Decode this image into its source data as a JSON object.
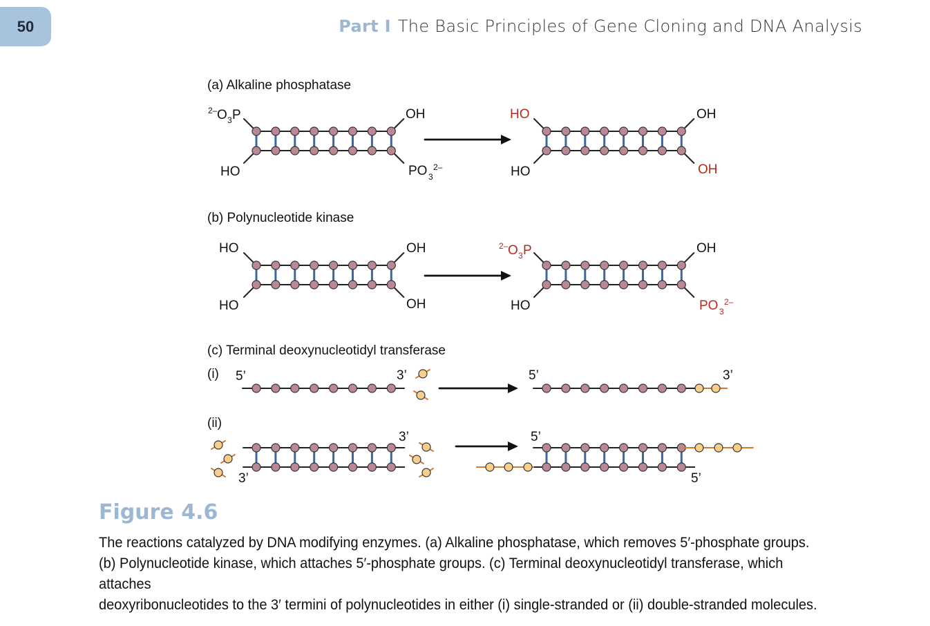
{
  "page": {
    "number": "50",
    "part": "Part I",
    "book_title": "The Basic Principles of Gene Cloning and DNA Analysis"
  },
  "figure": {
    "panel_a": {
      "title": "(a) Alkaline phosphatase",
      "left_top_left": "2–O3P",
      "left_top_right": "OH",
      "left_bottom_left": "HO",
      "left_bottom_right": "PO32–",
      "right_top_left": "HO",
      "right_top_right": "OH",
      "right_bottom_left": "HO",
      "right_bottom_right": "OH"
    },
    "panel_b": {
      "title": "(b) Polynucleotide kinase",
      "left_top_left": "HO",
      "left_top_right": "OH",
      "left_bottom_left": "HO",
      "left_bottom_right": "OH",
      "right_top_left": "2–O3P",
      "right_top_right": "OH",
      "right_bottom_left": "HO",
      "right_bottom_right": "PO32–"
    },
    "panel_c": {
      "title": "(c) Terminal deoxynucleotidyl transferase",
      "sub_i": "(i)",
      "sub_ii": "(ii)",
      "i_left_5": "5’",
      "i_left_3": "3’",
      "i_right_5": "5’",
      "i_right_3": "3’",
      "ii_left_top_3": "3’",
      "ii_left_bottom_3": "3’",
      "ii_right_top_5": "5’",
      "ii_right_bottom_5": "5’"
    },
    "colors": {
      "nucleotide": "#b98894",
      "added_nucleotide": "#f7cf8a",
      "backbone": "#222222",
      "base_pair": "#3768a8",
      "added_backbone": "#d9772b",
      "highlight_text": "#b22a20"
    }
  },
  "caption": {
    "label": "Figure 4.6",
    "line1": "The reactions catalyzed by DNA modifying enzymes. (a) Alkaline phosphatase, which removes 5′-phosphate groups.",
    "line2": "(b) Polynucleotide kinase, which attaches 5′-phosphate groups. (c) Terminal deoxynucleotidyl transferase, which attaches",
    "line3": "deoxyribonucleotides to the 3′ termini of polynucleotides in either (i) single-stranded or (ii) double-stranded molecules."
  }
}
